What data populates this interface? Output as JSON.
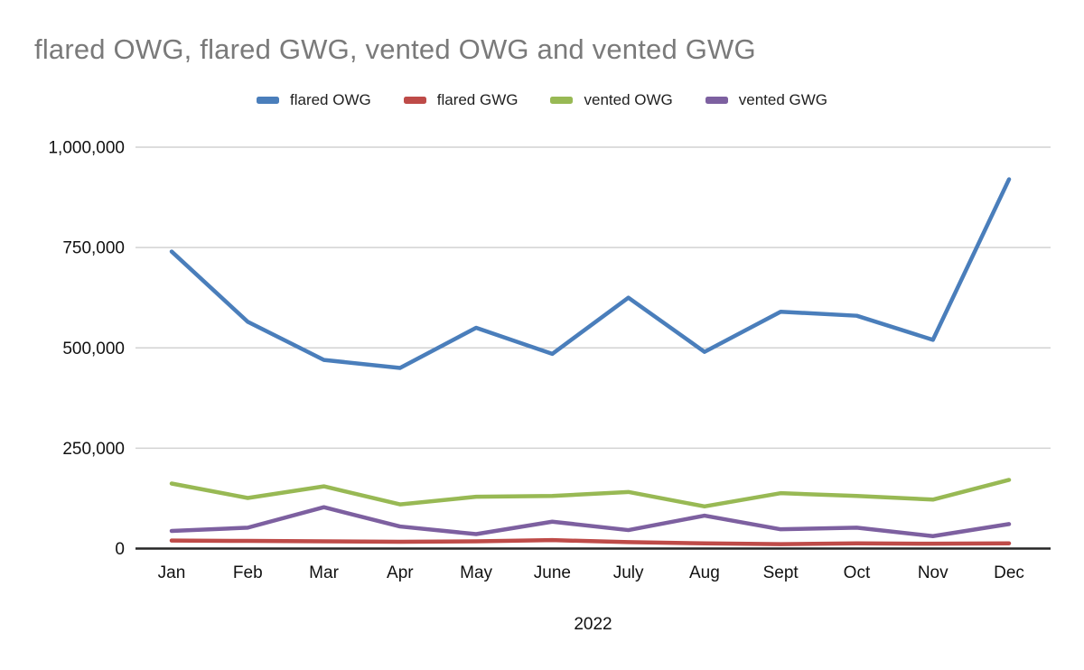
{
  "title": "flared OWG, flared GWG, vented OWG and vented GWG",
  "chart_data": {
    "type": "line",
    "title": "flared OWG, flared GWG, vented OWG and vented GWG",
    "x": [
      "Jan",
      "Feb",
      "Mar",
      "Apr",
      "May",
      "June",
      "July",
      "Aug",
      "Sept",
      "Oct",
      "Nov",
      "Dec"
    ],
    "xlabel": "2022",
    "ylabel": "",
    "ylim": [
      0,
      1000000
    ],
    "yticks": [
      0,
      250000,
      500000,
      750000,
      1000000
    ],
    "ytick_labels": [
      "0",
      "250,000",
      "500,000",
      "750,000",
      "1,000,000"
    ],
    "grid": "horizontal",
    "legend_position": "top",
    "axis_color": "#262626",
    "gridline_color": "#d2d2d2",
    "series": [
      {
        "name": "flared OWG",
        "color": "#4A7EBB",
        "values": [
          740000,
          565000,
          470000,
          450000,
          550000,
          485000,
          625000,
          490000,
          590000,
          580000,
          520000,
          920000
        ]
      },
      {
        "name": "flared GWG",
        "color": "#BE4B48",
        "values": [
          20000,
          19000,
          18000,
          17000,
          18000,
          21000,
          16000,
          13000,
          11000,
          13000,
          12000,
          13000
        ]
      },
      {
        "name": "vented OWG",
        "color": "#98B954",
        "values": [
          162000,
          126000,
          155000,
          110000,
          129000,
          131000,
          141000,
          105000,
          138000,
          131000,
          122000,
          171000
        ]
      },
      {
        "name": "vented GWG",
        "color": "#7D60A0",
        "values": [
          44000,
          52000,
          103000,
          55000,
          36000,
          67000,
          46000,
          82000,
          48000,
          52000,
          31000,
          61000
        ]
      }
    ]
  }
}
